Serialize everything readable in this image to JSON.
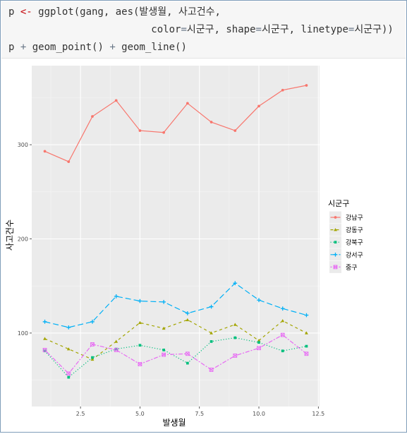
{
  "code": {
    "lines": [
      "p <- ggplot(gang, aes(발생월, 사고건수,",
      "                        color=시군구, shape=시군구, linetype=시군구))",
      "p + geom_point() + geom_line()"
    ]
  },
  "colors": {
    "keyword": "#c5060b",
    "operator": "#687687",
    "text": "#333333",
    "panel_bg": "#ebebeb",
    "grid_major": "#ffffff",
    "grid_minor": "#f5f5f5"
  },
  "chart_data": {
    "type": "line",
    "xlabel": "발생월",
    "ylabel": "사고건수",
    "xlim": [
      0.45,
      12.55
    ],
    "ylim": [
      22,
      384
    ],
    "xticks": [
      2.5,
      5.0,
      7.5,
      10.0,
      12.5
    ],
    "xtick_labels": [
      "2.5",
      "5.0",
      "7.5",
      "10.0",
      "12.5"
    ],
    "yticks": [
      100,
      200,
      300
    ],
    "ytick_labels": [
      "100",
      "200",
      "300"
    ],
    "legend_title": "시군구",
    "legend_position": "right",
    "grid": true,
    "x": [
      1,
      2,
      3,
      4,
      5,
      6,
      7,
      8,
      9,
      10,
      11,
      12
    ],
    "series": [
      {
        "name": "강남구",
        "color": "#f8766d",
        "shape": "circle",
        "linetype": "solid",
        "values": [
          293,
          282,
          330,
          347,
          315,
          313,
          344,
          324,
          315,
          341,
          358,
          363
        ]
      },
      {
        "name": "강동구",
        "color": "#a3a500",
        "shape": "triangle",
        "linetype": "dashed",
        "values": [
          94,
          83,
          72,
          91,
          111,
          105,
          114,
          100,
          109,
          92,
          113,
          100
        ]
      },
      {
        "name": "강북구",
        "color": "#00bf7d",
        "shape": "square",
        "linetype": "dotted",
        "values": [
          81,
          53,
          74,
          83,
          87,
          82,
          68,
          91,
          95,
          90,
          81,
          86
        ]
      },
      {
        "name": "강서구",
        "color": "#00b0f6",
        "shape": "plus",
        "linetype": "longdash",
        "values": [
          112,
          106,
          112,
          139,
          134,
          133,
          121,
          128,
          153,
          135,
          126,
          119
        ]
      },
      {
        "name": "중구",
        "color": "#e76bf3",
        "shape": "cross-square",
        "linetype": "twodash",
        "values": [
          82,
          57,
          88,
          82,
          67,
          77,
          78,
          61,
          76,
          84,
          98,
          78
        ]
      }
    ]
  }
}
